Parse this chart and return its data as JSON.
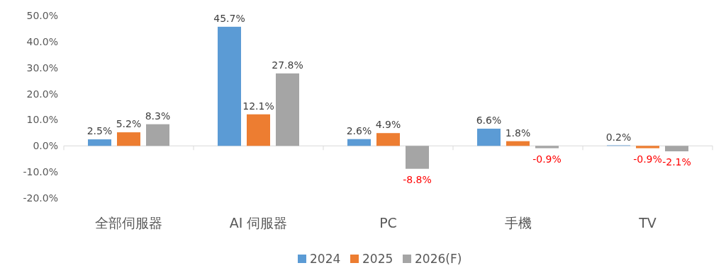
{
  "chart_data": {
    "type": "bar",
    "categories": [
      "全部伺服器",
      "AI 伺服器",
      "PC",
      "手機",
      "TV"
    ],
    "series": [
      {
        "name": "2024",
        "color": "#5b9bd5",
        "values": [
          2.5,
          45.7,
          2.6,
          6.6,
          0.2
        ],
        "value_labels": [
          "2.5%",
          "45.7%",
          "2.6%",
          "6.6%",
          "0.2%"
        ]
      },
      {
        "name": "2025",
        "color": "#ed7d31",
        "values": [
          5.2,
          12.1,
          4.9,
          1.8,
          -0.9
        ],
        "value_labels": [
          "5.2%",
          "12.1%",
          "4.9%",
          "1.8%",
          "-0.9%"
        ]
      },
      {
        "name": "2026(F)",
        "color": "#a5a5a5",
        "values": [
          8.3,
          27.8,
          -8.8,
          -0.9,
          -2.1
        ],
        "value_labels": [
          "8.3%",
          "27.8%",
          "-8.8%",
          "-0.9%",
          "-2.1%"
        ]
      }
    ],
    "ylim": [
      -20,
      50
    ],
    "yticks": [
      {
        "value": -20,
        "label": "-20.0%"
      },
      {
        "value": -10,
        "label": "-10.0%"
      },
      {
        "value": 0,
        "label": "0.0%"
      },
      {
        "value": 10,
        "label": "10.0%"
      },
      {
        "value": 20,
        "label": "20.0%"
      },
      {
        "value": 30,
        "label": "30.0%"
      },
      {
        "value": 40,
        "label": "40.0%"
      },
      {
        "value": 50,
        "label": "50.0%"
      }
    ],
    "legend": "bottom"
  }
}
